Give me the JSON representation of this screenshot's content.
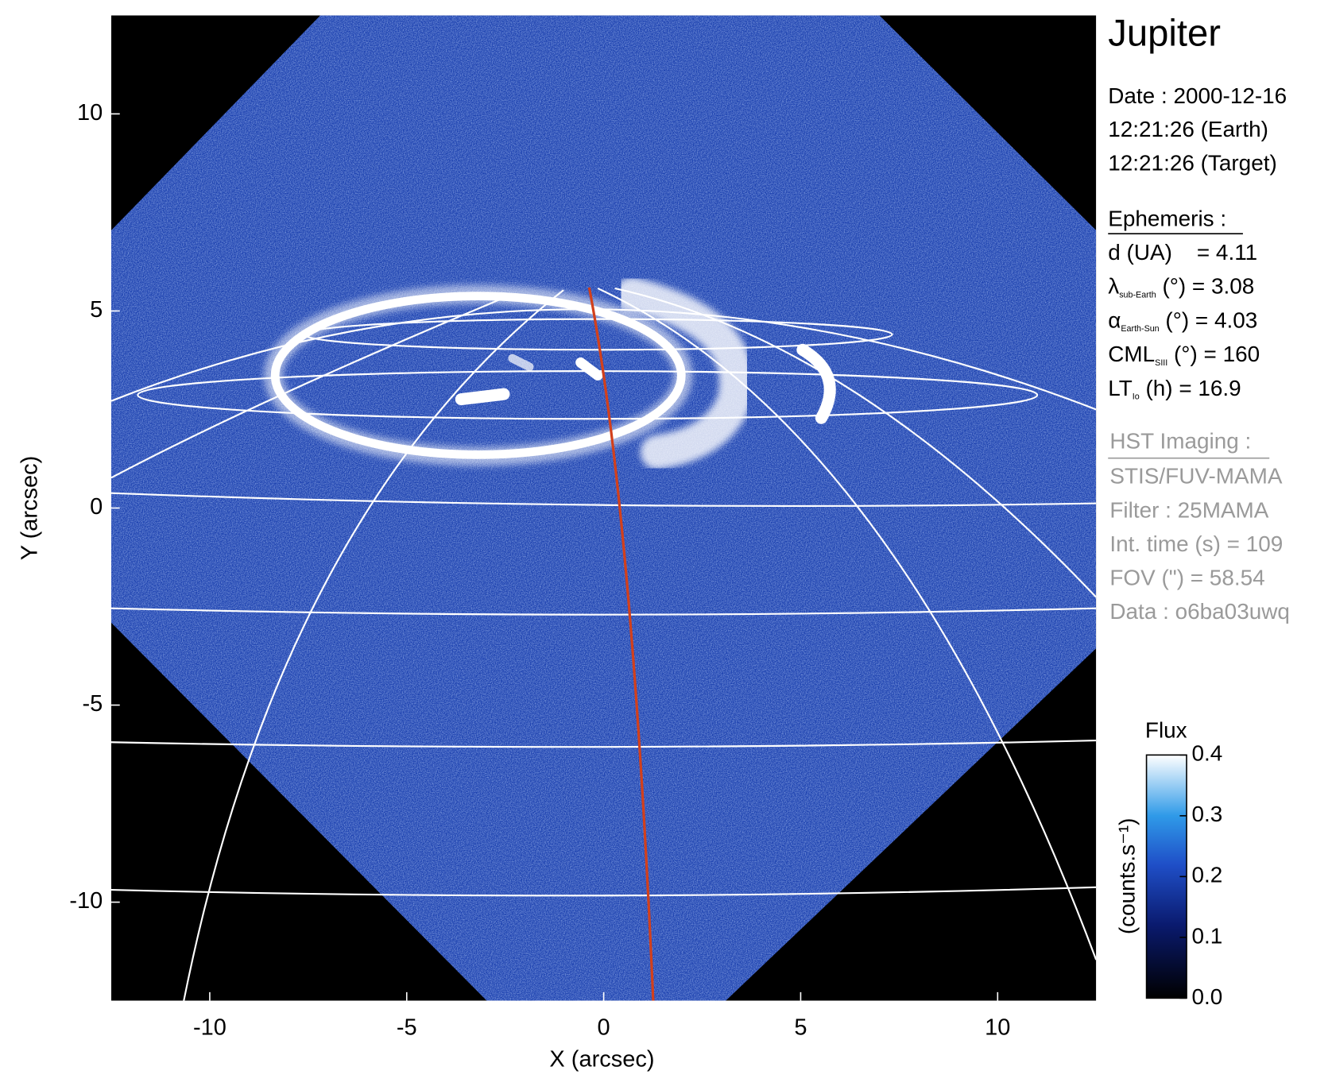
{
  "chart_data": {
    "type": "image",
    "title": "Jupiter",
    "xlabel": "X (arcsec)",
    "ylabel": "Y (arcsec)",
    "xlim": [
      -12.5,
      12.5
    ],
    "ylim": [
      -12.5,
      12.5
    ],
    "xticks": [
      -10,
      -5,
      0,
      5,
      10
    ],
    "yticks": [
      -10,
      -5,
      0,
      5,
      10
    ],
    "colorbar": {
      "title": "Flux",
      "label": "(counts.s⁻¹)",
      "lim": [
        0,
        0.4
      ],
      "ticks": [
        {
          "value": 0,
          "label": "0.0"
        },
        0.1,
        0.2,
        0.3,
        0.4
      ]
    },
    "date_lines": [
      "Date : 2000-12-16",
      "12:21:26 (Earth)",
      "12:21:26 (Target)"
    ],
    "ephemeris": {
      "header": "Ephemeris :",
      "rows": [
        {
          "main": "d (UA)    = 4.11"
        },
        {
          "main": "λ",
          "sub": "sub-Earth",
          "rest": " (°) = 3.08"
        },
        {
          "main": "α",
          "sub": "Earth-Sun",
          "rest": " (°) = 4.03"
        },
        {
          "main": "CML",
          "sub": "SIII",
          "rest": " (°) = 160"
        },
        {
          "main": "LT",
          "sub": "Io",
          "rest": " (h) = 16.9"
        }
      ]
    },
    "imaging": {
      "header": "HST Imaging :",
      "rows": [
        "STIS/FUV-MAMA",
        "Filter : 25MAMA",
        "Int. time (s) = 109",
        "FOV (\") = 58.54",
        "Data : o6ba03uwq"
      ]
    }
  }
}
